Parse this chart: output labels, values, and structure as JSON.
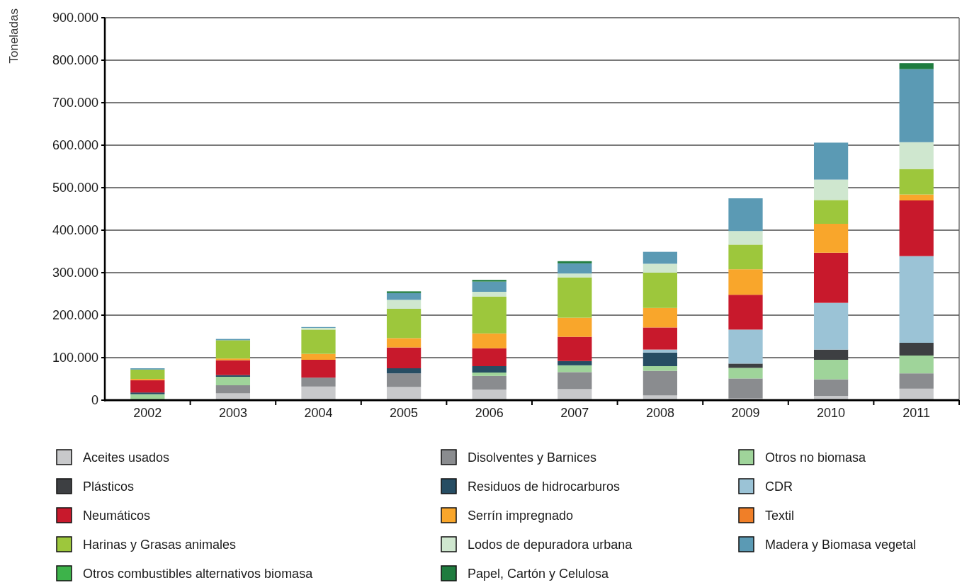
{
  "chart_data": {
    "type": "bar",
    "stacked": true,
    "ylabel": "Toneladas",
    "categories": [
      "2002",
      "2003",
      "2004",
      "2005",
      "2006",
      "2007",
      "2008",
      "2009",
      "2010",
      "2011"
    ],
    "ylim": [
      0,
      900000
    ],
    "yticks": [
      0,
      {
        "value": 100000,
        "label": "100.000"
      },
      {
        "value": 200000,
        "label": "200.000"
      },
      {
        "value": 300000,
        "label": "300.000"
      },
      {
        "value": 400000,
        "label": "400.000"
      },
      {
        "value": 500000,
        "label": "500.000"
      },
      {
        "value": 600000,
        "label": "600.000"
      },
      {
        "value": 700000,
        "label": "700.000"
      },
      {
        "value": 800000,
        "label": "800.000"
      },
      {
        "value": 900000,
        "label": "900.000"
      }
    ],
    "grid": "y",
    "legend": "bottom",
    "series": [
      {
        "name": "Aceites usados",
        "color": "#c8c9cb",
        "values": [
          null,
          16000,
          32000,
          31000,
          25000,
          26000,
          11000,
          4000,
          10000,
          27000
        ]
      },
      {
        "name": "Disolventes y Barnices",
        "color": "#8a8c8f",
        "values": [
          null,
          19000,
          21000,
          32000,
          32000,
          40000,
          58000,
          47000,
          39000,
          36000
        ]
      },
      {
        "name": "Otros no biomasa",
        "color": "#9fd49a",
        "values": [
          14000,
          20000,
          null,
          null,
          8000,
          16000,
          11000,
          25000,
          46000,
          42000
        ]
      },
      {
        "name": "Plásticos",
        "color": "#3d3f42",
        "values": [
          null,
          null,
          null,
          null,
          null,
          null,
          null,
          10000,
          24000,
          30000
        ]
      },
      {
        "name": "Residuos de hidrocarburos",
        "color": "#264d63",
        "values": [
          4000,
          4000,
          null,
          12000,
          15000,
          10000,
          32000,
          null,
          null,
          null
        ]
      },
      {
        "name": "CDR",
        "color": "#9bc3d6",
        "values": [
          null,
          null,
          null,
          null,
          null,
          null,
          7000,
          80000,
          110000,
          204000
        ]
      },
      {
        "name": "Neumáticos",
        "color": "#c8192c",
        "values": [
          29000,
          35000,
          42000,
          49000,
          42000,
          57000,
          52000,
          82000,
          118000,
          131000
        ]
      },
      {
        "name": "Serrín impregnado",
        "color": "#f9a62b",
        "values": [
          3000,
          4000,
          14000,
          22000,
          35000,
          45000,
          46000,
          60000,
          68000,
          14000
        ]
      },
      {
        "name": "Textil",
        "color": "#f07f28",
        "values": [
          null,
          null,
          null,
          null,
          null,
          null,
          null,
          null,
          null,
          null
        ]
      },
      {
        "name": "Harinas y Grasas animales",
        "color": "#9dc73c",
        "values": [
          22000,
          43000,
          57000,
          69000,
          87000,
          95000,
          83000,
          58000,
          56000,
          60000
        ]
      },
      {
        "name": "Lodos de depuradora urbana",
        "color": "#cfe7cf",
        "values": [
          null,
          null,
          4000,
          21000,
          11000,
          9000,
          21000,
          32000,
          48000,
          63000
        ]
      },
      {
        "name": "Madera y Biomasa vegetal",
        "color": "#5b9ab4",
        "values": [
          3000,
          3000,
          2000,
          16000,
          24000,
          24000,
          28000,
          77000,
          87000,
          172000
        ]
      },
      {
        "name": "Otros combustibles alternativos biomasa",
        "color": "#3db34a",
        "values": [
          null,
          null,
          null,
          null,
          null,
          null,
          null,
          null,
          null,
          null
        ]
      },
      {
        "name": "Papel, Cartón y Celulosa",
        "color": "#1f7c3f",
        "values": [
          null,
          null,
          null,
          4000,
          4000,
          5000,
          null,
          null,
          null,
          14000
        ]
      }
    ]
  }
}
